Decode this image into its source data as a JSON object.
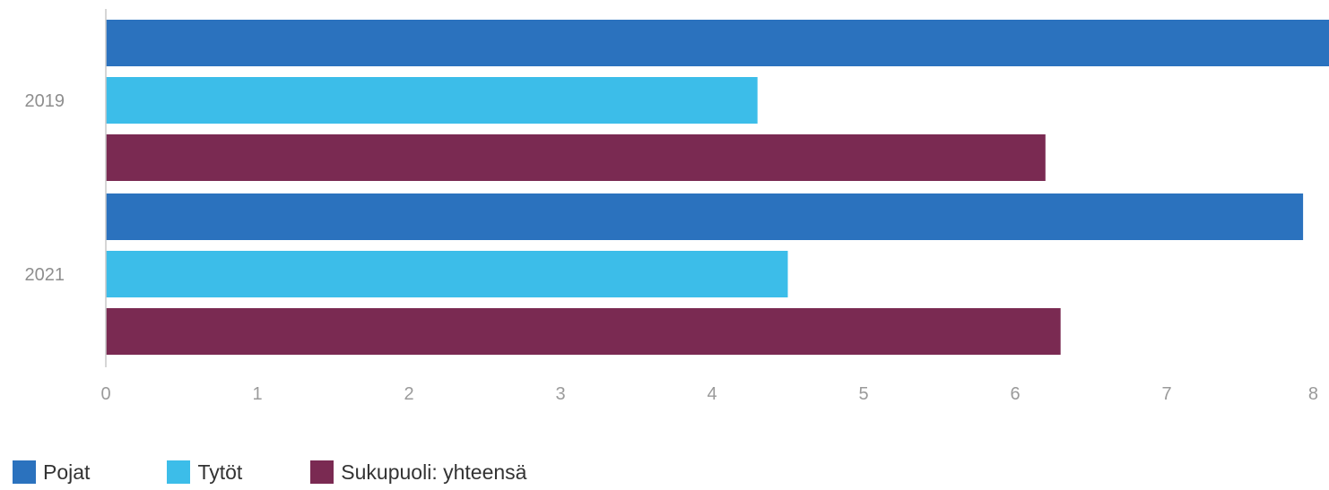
{
  "chart_data": {
    "type": "bar",
    "orientation": "horizontal",
    "categories": [
      "2019",
      "2021"
    ],
    "series": [
      {
        "name": "Pojat",
        "color": "#2b72be",
        "values": [
          8.1,
          7.9
        ]
      },
      {
        "name": "Tytöt",
        "color": "#3cbde9",
        "values": [
          4.3,
          4.5
        ]
      },
      {
        "name": "Sukupuoli: yhteensä",
        "color": "#7a2a52",
        "values": [
          6.2,
          6.3
        ]
      }
    ],
    "xlim": [
      0,
      8
    ],
    "x_ticks": [
      "0",
      "1",
      "2",
      "3",
      "4",
      "5",
      "6",
      "7",
      "8"
    ],
    "legend_position": "bottom-left",
    "grid": false
  }
}
